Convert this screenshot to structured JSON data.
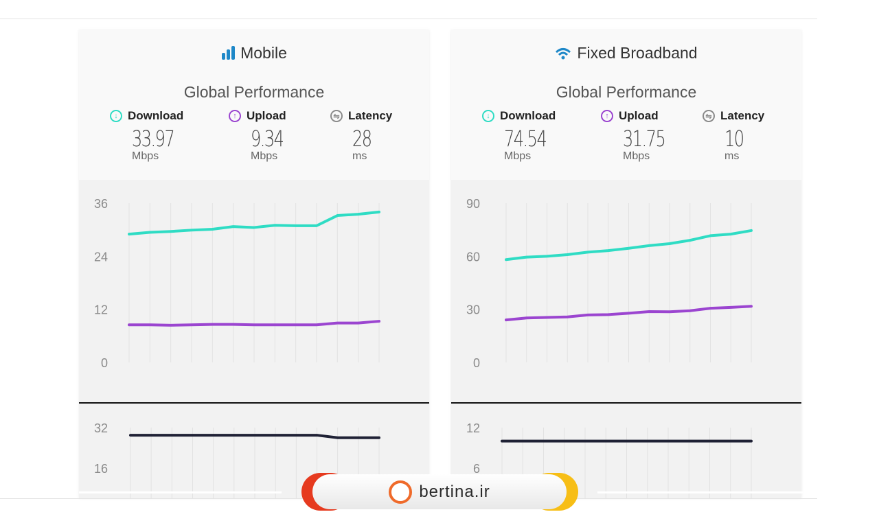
{
  "colors": {
    "download": "#2fdcc4",
    "upload": "#9b45d0",
    "latency": "#1f2135",
    "latency_icon": "#8a8a8a",
    "title_icon": "#1e88c8"
  },
  "cards": [
    {
      "title": "Mobile",
      "icon": "signal-bars-icon",
      "subtitle": "Global Performance",
      "metrics": [
        {
          "label": "Download",
          "value": "33.97",
          "unit": "Mbps"
        },
        {
          "label": "Upload",
          "value": "9.34",
          "unit": "Mbps"
        },
        {
          "label": "Latency",
          "value": "28",
          "unit": "ms"
        }
      ]
    },
    {
      "title": "Fixed Broadband",
      "icon": "wifi-icon",
      "subtitle": "Global Performance",
      "metrics": [
        {
          "label": "Download",
          "value": "74.54",
          "unit": "Mbps"
        },
        {
          "label": "Upload",
          "value": "31.75",
          "unit": "Mbps"
        },
        {
          "label": "Latency",
          "value": "10",
          "unit": "ms"
        }
      ]
    }
  ],
  "chart_data": [
    {
      "type": "line",
      "panel": "Mobile speed",
      "ylim": [
        0,
        36
      ],
      "yticks": [
        "0",
        "12",
        "24",
        "36"
      ],
      "grid": "vertical",
      "series": [
        {
          "name": "Download",
          "values": [
            29.0,
            29.4,
            29.6,
            29.9,
            30.1,
            30.7,
            30.5,
            31.0,
            30.9,
            30.9,
            33.2,
            33.5,
            34.0
          ]
        },
        {
          "name": "Upload",
          "values": [
            8.5,
            8.5,
            8.4,
            8.5,
            8.6,
            8.6,
            8.5,
            8.5,
            8.5,
            8.5,
            8.9,
            8.9,
            9.3
          ]
        }
      ]
    },
    {
      "type": "line",
      "panel": "Mobile latency",
      "ylim": [
        0,
        40
      ],
      "yticks": [
        "16",
        "32"
      ],
      "grid": "vertical",
      "series": [
        {
          "name": "Latency",
          "values": [
            29,
            29,
            29,
            29,
            29,
            29,
            29,
            29,
            29,
            29,
            28,
            28,
            28
          ]
        }
      ]
    },
    {
      "type": "line",
      "panel": "Fixed Broadband speed",
      "ylim": [
        0,
        90
      ],
      "yticks": [
        "0",
        "30",
        "60",
        "90"
      ],
      "grid": "vertical",
      "series": [
        {
          "name": "Download",
          "values": [
            58.1,
            59.5,
            60.0,
            60.9,
            62.3,
            63.2,
            64.5,
            66.0,
            67.1,
            69.0,
            71.6,
            72.5,
            74.5
          ]
        },
        {
          "name": "Upload",
          "values": [
            24.0,
            25.1,
            25.4,
            25.7,
            26.8,
            27.0,
            27.8,
            28.7,
            28.6,
            29.2,
            30.6,
            31.1,
            31.7
          ]
        }
      ]
    },
    {
      "type": "line",
      "panel": "Fixed Broadband latency",
      "ylim": [
        0,
        14
      ],
      "yticks": [
        "6",
        "12"
      ],
      "grid": "vertical",
      "series": [
        {
          "name": "Latency",
          "values": [
            10,
            10,
            10,
            10,
            10,
            10,
            10,
            10,
            10,
            10,
            10,
            10,
            10
          ]
        }
      ]
    }
  ],
  "watermark": {
    "text": "bertina.ir"
  }
}
